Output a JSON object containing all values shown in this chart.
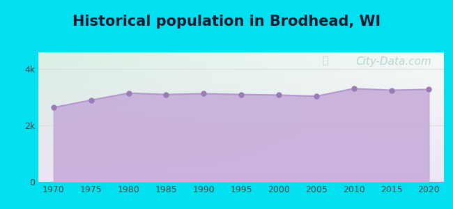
{
  "title": "Historical population in Brodhead, WI",
  "years": [
    1970,
    1975,
    1980,
    1985,
    1990,
    1995,
    2000,
    2005,
    2010,
    2015,
    2020
  ],
  "population": [
    2640,
    2900,
    3150,
    3100,
    3130,
    3100,
    3080,
    3040,
    3310,
    3250,
    3280
  ],
  "line_color": "#b399cc",
  "fill_color": "#c4aad8",
  "fill_alpha": 0.85,
  "marker_color": "#9b7bb5",
  "marker_size": 5,
  "bg_outer": "#00e0f0",
  "bg_plot_topleft": "#daf0e4",
  "bg_plot_topright": "#f5faf6",
  "bg_plot_bottom": "#ede5f5",
  "title_fontsize": 15,
  "title_fontweight": "bold",
  "title_color": "#1a1a2e",
  "ylim": [
    0,
    4600
  ],
  "xlim": [
    1968,
    2022
  ],
  "ytick_labels": [
    "0",
    "2k",
    "4k"
  ],
  "ytick_values": [
    0,
    2000,
    4000
  ],
  "xtick_values": [
    1970,
    1975,
    1980,
    1985,
    1990,
    1995,
    2000,
    2005,
    2010,
    2015,
    2020
  ],
  "watermark_text": "City-Data.com",
  "watermark_color": "#88b8c0",
  "watermark_alpha": 0.55,
  "watermark_fontsize": 11,
  "grid_color": "#dddddd",
  "grid_linewidth": 0.7,
  "tick_fontsize": 9,
  "line_linewidth": 1.5
}
